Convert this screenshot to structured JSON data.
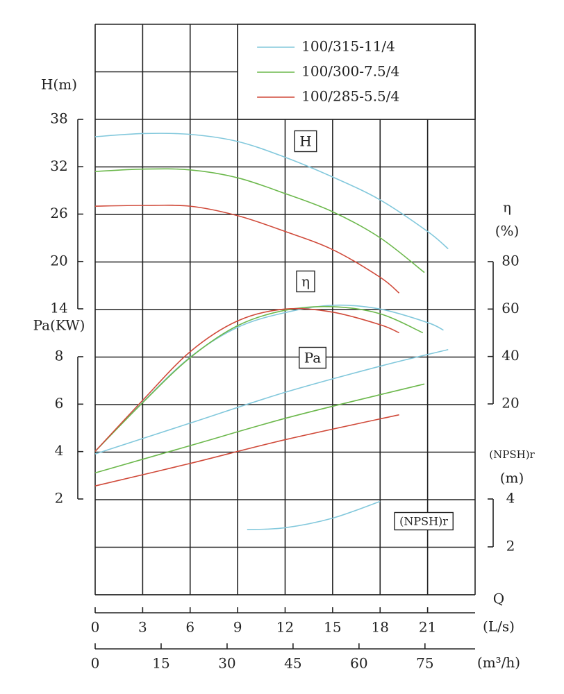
{
  "chart_data": {
    "type": "line",
    "xlabel": "Q",
    "xunit": "(L/s)",
    "x2unit": "(m³/h)",
    "xlim": [
      0,
      24
    ],
    "xticks": [
      0,
      3,
      6,
      9,
      12,
      15,
      18,
      21
    ],
    "x2lim": [
      0,
      86.4
    ],
    "x2ticks": [
      0,
      15,
      30,
      45,
      60,
      75
    ],
    "y_axes": [
      {
        "key": "H",
        "label": [
          "H(m)"
        ],
        "lim": [
          14,
          38
        ],
        "ticks": [
          14,
          20,
          26,
          32,
          38
        ]
      },
      {
        "key": "Pa",
        "label": [
          "Pa(KW)"
        ],
        "lim": [
          2,
          8
        ],
        "ticks": [
          2,
          4,
          6,
          8
        ]
      },
      {
        "key": "eta",
        "label": [
          "η",
          "(%)"
        ],
        "lim": [
          20,
          80
        ],
        "ticks": [
          20,
          40,
          60,
          80
        ]
      },
      {
        "key": "npsh",
        "label": [
          "(NPSH)r",
          "(m)"
        ],
        "lim": [
          2,
          4
        ],
        "ticks": [
          2,
          4
        ]
      }
    ],
    "annotations": [
      "H",
      "η",
      "Pa",
      "(NPSH)r"
    ],
    "series": [
      {
        "name": "100/315-11/4",
        "color": "#82c8dc",
        "axis": "H",
        "x": [
          0,
          3,
          6,
          9,
          12,
          15,
          18,
          21,
          22.3
        ],
        "values": [
          35.8,
          36.2,
          36.1,
          35.2,
          33.2,
          30.7,
          27.8,
          23.8,
          21.6
        ]
      },
      {
        "name": "100/300-7.5/4",
        "color": "#6cb84c",
        "axis": "H",
        "x": [
          0,
          3,
          6,
          9,
          12,
          15,
          18,
          20.8
        ],
        "values": [
          31.4,
          31.7,
          31.6,
          30.6,
          28.6,
          26.3,
          23.0,
          18.6
        ]
      },
      {
        "name": "100/285-5.5/4",
        "color": "#d04a3a",
        "axis": "H",
        "x": [
          0,
          3,
          6,
          9,
          12,
          15,
          18,
          19.2
        ],
        "values": [
          27.0,
          27.1,
          27.0,
          25.8,
          23.8,
          21.5,
          18.0,
          16.0
        ]
      },
      {
        "color": "#82c8dc",
        "axis": "eta",
        "x": [
          0,
          3,
          6,
          9,
          12,
          15,
          18,
          21,
          22
        ],
        "values": [
          0,
          20.7,
          39.7,
          52.3,
          58.5,
          61.6,
          60,
          54.3,
          51.1
        ]
      },
      {
        "color": "#6cb84c",
        "axis": "eta",
        "x": [
          0,
          3,
          6,
          9,
          12,
          15,
          18,
          20.7
        ],
        "values": [
          0,
          20.5,
          39.5,
          53,
          59.5,
          61,
          58,
          50
        ]
      },
      {
        "color": "#d04a3a",
        "axis": "eta",
        "x": [
          0,
          3,
          6,
          9,
          12,
          15,
          18,
          19.2
        ],
        "values": [
          0,
          21.5,
          42,
          55,
          60,
          58.7,
          53.4,
          50
        ]
      },
      {
        "color": "#82c8dc",
        "axis": "Pa",
        "x": [
          0,
          6,
          12,
          18,
          22.3
        ],
        "values": [
          3.9,
          5.2,
          6.5,
          7.6,
          8.3
        ]
      },
      {
        "color": "#6cb84c",
        "axis": "Pa",
        "x": [
          0,
          6,
          12,
          18,
          20.8
        ],
        "values": [
          3.1,
          4.25,
          5.4,
          6.4,
          6.85
        ]
      },
      {
        "color": "#d04a3a",
        "axis": "Pa",
        "x": [
          0,
          6,
          12,
          19.2
        ],
        "values": [
          2.55,
          3.5,
          4.5,
          5.55
        ]
      },
      {
        "color": "#82c8dc",
        "axis": "npsh",
        "x": [
          9.6,
          12,
          15,
          18
        ],
        "values": [
          2.72,
          2.8,
          3.2,
          3.9
        ]
      }
    ]
  }
}
